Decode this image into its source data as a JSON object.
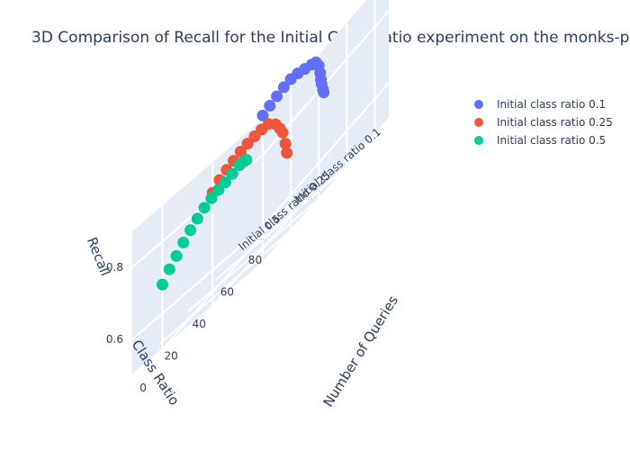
{
  "chart_data": {
    "type": "scatter3d",
    "title": "3D Comparison of Recall for the Initial Class Ratio experiment on the monks-p",
    "axes": {
      "x": {
        "title": "Number of Queries",
        "ticks": [
          "0",
          "20",
          "40",
          "60",
          "80"
        ]
      },
      "y": {
        "title": "Class Ratio",
        "ticks": [
          "Initial class ratio 0.1",
          "Initial class ratio 0.25",
          "0.5"
        ]
      },
      "z": {
        "title": "Recall",
        "ticks": [
          "0.6",
          "0.8"
        ],
        "range": [
          0.5,
          0.9
        ]
      }
    },
    "series": [
      {
        "name": "Initial class ratio 0.1",
        "color": "#636efa",
        "points": [
          [
            0,
            0.909
          ],
          [
            5,
            0.914
          ],
          [
            10,
            0.918
          ],
          [
            15,
            0.921
          ],
          [
            20,
            0.921
          ],
          [
            25,
            0.915
          ],
          [
            30,
            0.905
          ],
          [
            35,
            0.895
          ],
          [
            38,
            0.888
          ],
          [
            40,
            0.87
          ],
          [
            41,
            0.845
          ],
          [
            41.5,
            0.825
          ],
          [
            42,
            0.81
          ],
          [
            43,
            0.79
          ],
          [
            43.5,
            0.78
          ]
        ]
      },
      {
        "name": "Initial class ratio 0.25",
        "color": "#ef553b",
        "points": [
          [
            0,
            0.815
          ],
          [
            5,
            0.828
          ],
          [
            10,
            0.834
          ],
          [
            15,
            0.837
          ],
          [
            20,
            0.84
          ],
          [
            25,
            0.84
          ],
          [
            30,
            0.838
          ],
          [
            35,
            0.835
          ],
          [
            40,
            0.828
          ],
          [
            45,
            0.805
          ],
          [
            48,
            0.78
          ],
          [
            50,
            0.76
          ],
          [
            52,
            0.72
          ],
          [
            53,
            0.69
          ]
        ]
      },
      {
        "name": "Initial class ratio 0.5",
        "color": "#00cc96",
        "points": [
          [
            0,
            0.68
          ],
          [
            5,
            0.7
          ],
          [
            10,
            0.715
          ],
          [
            15,
            0.73
          ],
          [
            20,
            0.742
          ],
          [
            25,
            0.752
          ],
          [
            30,
            0.76
          ],
          [
            35,
            0.764
          ],
          [
            40,
            0.765
          ],
          [
            45,
            0.764
          ],
          [
            50,
            0.765
          ],
          [
            55,
            0.767
          ],
          [
            58,
            0.764
          ],
          [
            60,
            0.76
          ]
        ]
      }
    ]
  }
}
